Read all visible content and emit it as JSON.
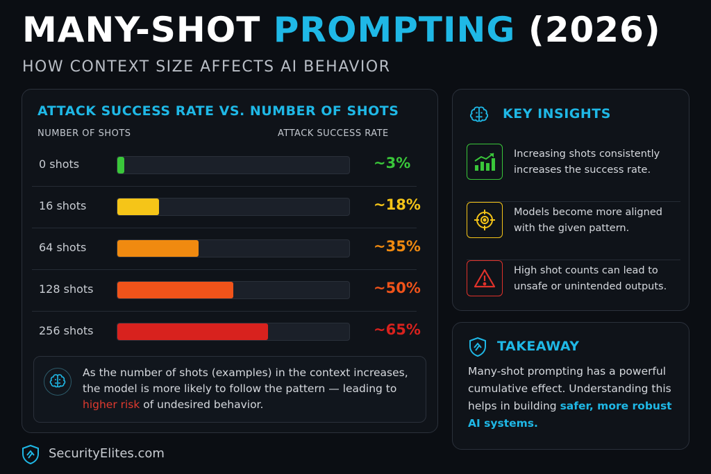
{
  "header": {
    "title_part1": "MANY-SHOT ",
    "title_part2": "PROMPTING",
    "title_part3": " (2026)",
    "subtitle": "HOW CONTEXT SIZE AFFECTS AI BEHAVIOR"
  },
  "chart_data": {
    "type": "bar",
    "orientation": "horizontal",
    "title": "ATTACK SUCCESS RATE VS. NUMBER OF SHOTS",
    "xlabel": "ATTACK SUCCESS RATE",
    "ylabel": "NUMBER OF SHOTS",
    "xlim": [
      0,
      100
    ],
    "grid": false,
    "categories": [
      "0 shots",
      "16 shots",
      "64 shots",
      "128 shots",
      "256 shots"
    ],
    "values": [
      3,
      18,
      35,
      50,
      65
    ],
    "value_labels": [
      "~3%",
      "~18%",
      "~35%",
      "~50%",
      "~65%"
    ],
    "colors": [
      "#3ac73a",
      "#f5c518",
      "#f08a10",
      "#f0531a",
      "#d8221e"
    ]
  },
  "note": {
    "icon": "brain-icon",
    "text_before": "As the number of shots (examples) in the context increases, the model is more likely to follow the pattern — leading to ",
    "text_highlight": "higher risk",
    "text_after": " of undesired behavior."
  },
  "insights": {
    "title": "KEY INSIGHTS",
    "icon": "brain-icon",
    "items": [
      {
        "icon": "trend-up-icon",
        "text": "Increasing shots consistently increases the success rate.",
        "color": "#3ac73a"
      },
      {
        "icon": "target-icon",
        "text": "Models become more aligned with the given pattern.",
        "color": "#f5c518"
      },
      {
        "icon": "warning-icon",
        "text": "High shot counts can lead to unsafe or unintended outputs.",
        "color": "#e0322b"
      }
    ]
  },
  "takeaway": {
    "title": "TAKEAWAY",
    "icon": "shield-icon",
    "text_before": "Many-shot prompting has a powerful cumulative effect. Understanding this helps in building ",
    "text_highlight": "safer, more robust AI systems."
  },
  "brand": {
    "name": "SecurityElites.com",
    "icon": "shield-icon"
  },
  "colors": {
    "accent": "#1fb8e6",
    "background": "#0b0e13",
    "risk": "#e03a2f"
  }
}
